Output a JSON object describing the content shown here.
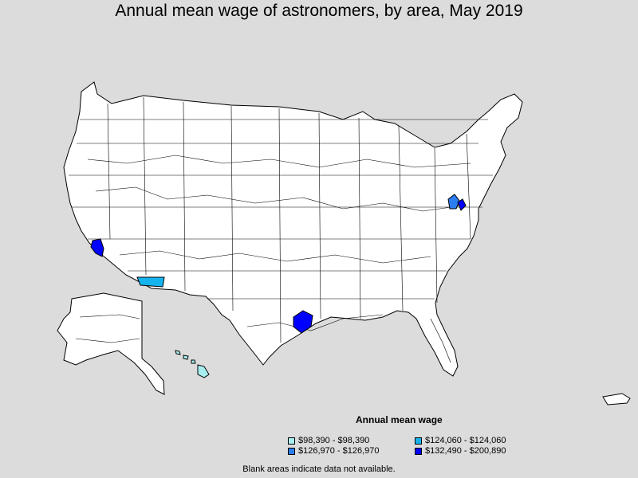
{
  "title": "Annual mean wage of astronomers, by area, May 2019",
  "legend": {
    "title": "Annual mean wage",
    "items": [
      {
        "label": "$98,390 - $98,390",
        "color": "#a8eef0"
      },
      {
        "label": "$124,060 - $124,060",
        "color": "#16b4ee"
      },
      {
        "label": "$126,970 - $126,970",
        "color": "#2c7ef0"
      },
      {
        "label": "$132,490 - $200,890",
        "color": "#0000ff"
      }
    ]
  },
  "note": "Blank areas indicate data not available.",
  "colors": {
    "background": "#dcdcdc",
    "land": "#ffffff",
    "border": "#000000"
  },
  "highlighted_areas": [
    {
      "region": "Los Angeles, CA",
      "legend_item": 3
    },
    {
      "region": "Houston, TX",
      "legend_item": 3
    },
    {
      "region": "Washington, DC",
      "legend_item": 3
    },
    {
      "region": "Tucson, AZ",
      "legend_item": 1
    },
    {
      "region": "Washington-area, VA",
      "legend_item": 2
    },
    {
      "region": "Hawaii",
      "legend_item": 0
    }
  ]
}
